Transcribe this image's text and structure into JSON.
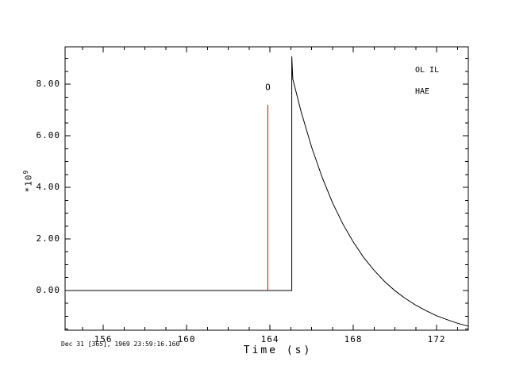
{
  "figure": {
    "background": "#ffffff",
    "axis_color": "#000000"
  },
  "chart_data": {
    "type": "line",
    "title": "",
    "xlabel": "Time (s)",
    "ylabel_prefix": "*10",
    "ylabel_exponent": "9",
    "timestamp_annotation": "Dec 31 [365], 1969 23:59:16.160",
    "grid": false,
    "xlim": [
      154.17,
      173.52
    ],
    "ylim_units_1e9": [
      -1.54,
      9.45
    ],
    "x_major_ticks": {
      "values": [
        156,
        160,
        164,
        168,
        172
      ],
      "labels": [
        "156",
        "160",
        "164",
        "168",
        "172"
      ]
    },
    "x_minor_tick_step": 1,
    "y_major_ticks": {
      "values": [
        0,
        2,
        4,
        6,
        8
      ],
      "labels": [
        "0.00",
        "2.00",
        "4.00",
        "6.00",
        "8.00"
      ]
    },
    "y_minor_tick_step": 0.5,
    "legend": {
      "position": "top-right",
      "lines": [
        "OL IL",
        "HAE"
      ]
    },
    "series": [
      {
        "name": "main-trace",
        "color": "#000000",
        "points": [
          [
            154.2,
            0
          ],
          [
            165.05,
            0
          ],
          [
            165.05,
            9.08
          ],
          [
            165.1,
            8.2
          ],
          [
            165.5,
            6.93
          ],
          [
            166.0,
            5.56
          ],
          [
            166.5,
            4.4
          ],
          [
            167.0,
            3.41
          ],
          [
            167.5,
            2.58
          ],
          [
            168.0,
            1.88
          ],
          [
            168.5,
            1.28
          ],
          [
            169.0,
            0.78
          ],
          [
            169.5,
            0.35
          ],
          [
            170.0,
            -0.01
          ],
          [
            170.5,
            -0.31
          ],
          [
            171.0,
            -0.57
          ],
          [
            171.5,
            -0.79
          ],
          [
            172.0,
            -0.98
          ],
          [
            172.5,
            -1.13
          ],
          [
            173.0,
            -1.27
          ],
          [
            173.5,
            -1.38
          ]
        ]
      },
      {
        "name": "event-line",
        "color": "#d40000",
        "points": [
          [
            163.9,
            0
          ],
          [
            163.9,
            7.2
          ]
        ]
      }
    ],
    "markers": [
      {
        "symbol": "O",
        "x": 163.9,
        "y": 7.9,
        "color": "#000000"
      }
    ]
  }
}
